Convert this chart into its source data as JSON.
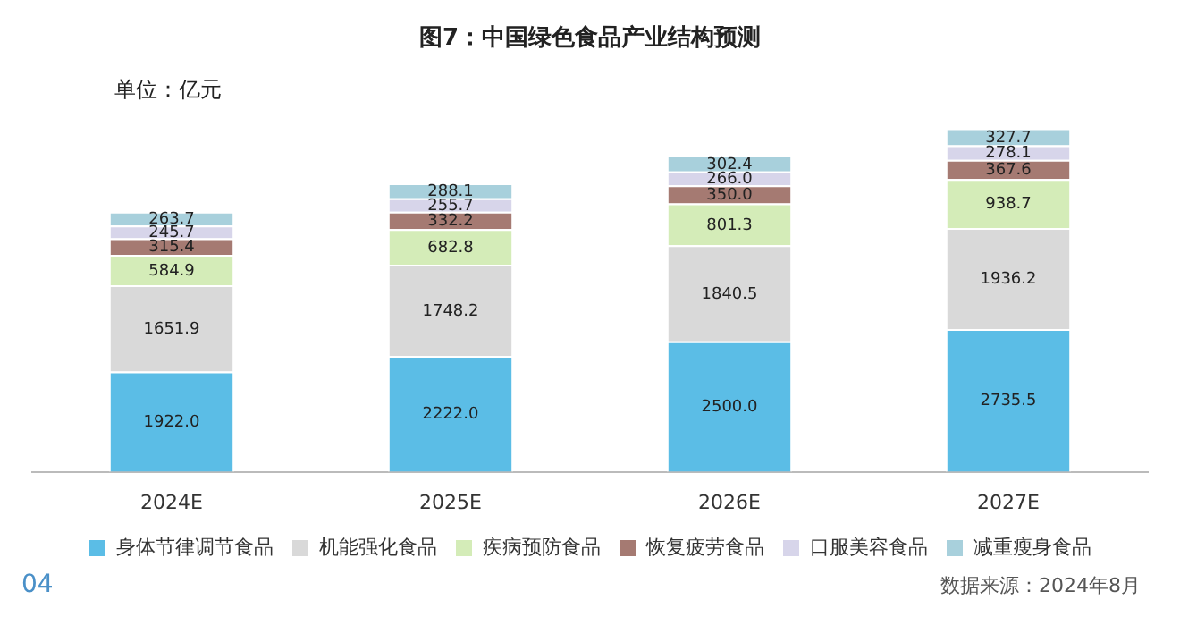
{
  "chart_data": {
    "type": "bar",
    "title": "图7：中国绿色食品产业结构预测",
    "stacked": true,
    "grid": false,
    "legend": "bottom",
    "categories": [
      "2024E",
      "2025E",
      "2026E",
      "2027E"
    ],
    "series": [
      {
        "name": "身体节律调节食品",
        "color": "#5bbde6",
        "values": [
          1922.0,
          2222.0,
          2500.0,
          2735.5
        ],
        "value_labels": [
          "1922.0",
          "2222.0",
          "2500.0",
          "2735.5"
        ]
      },
      {
        "name": "机能强化食品",
        "color": "#d9d9d9",
        "values": [
          1651.9,
          1748.2,
          1840.5,
          1936.2
        ],
        "value_labels": [
          "1651.9",
          "1748.2",
          "1840.5",
          "1936.2"
        ]
      },
      {
        "name": "疾病预防食品",
        "color": "#d4ecb8",
        "values": [
          584.9,
          682.8,
          801.3,
          938.7
        ],
        "value_labels": [
          "584.9",
          "682.8",
          "801.3",
          "938.7"
        ]
      },
      {
        "name": "恢复疲劳食品",
        "color": "#a57a72",
        "values": [
          315.4,
          332.2,
          350.0,
          367.6
        ],
        "value_labels": [
          "315.4",
          "332.2",
          "350.0",
          "367.6"
        ]
      },
      {
        "name": "口服美容食品",
        "color": "#d7d5ea",
        "values": [
          245.7,
          255.7,
          266.0,
          278.1
        ],
        "value_labels": [
          "245.7",
          "255.7",
          "266.0",
          "278.1"
        ]
      },
      {
        "name": "减重瘦身食品",
        "color": "#a8d0dc",
        "values": [
          263.7,
          288.1,
          302.4,
          327.7
        ],
        "value_labels": [
          "263.7",
          "288.1",
          "302.4",
          "327.7"
        ]
      }
    ],
    "annotations": [
      "单位：亿元",
      "04",
      "数据来源：2024年8月"
    ]
  }
}
